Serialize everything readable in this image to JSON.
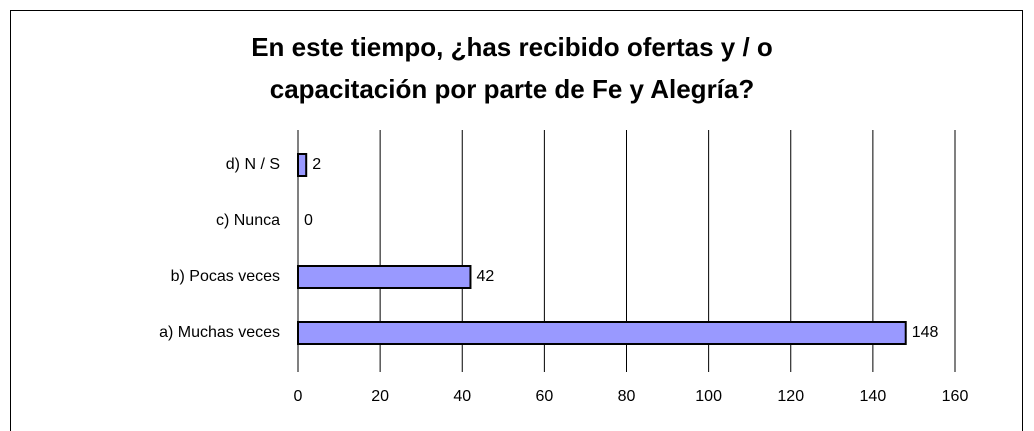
{
  "chart_data": {
    "type": "bar",
    "orientation": "horizontal",
    "title": [
      "En este tiempo, ¿has recibido ofertas y / o",
      "capacitación por parte de Fe y Alegría?"
    ],
    "categories": [
      "a) Muchas veces",
      "b) Pocas veces",
      "c) Nunca",
      "d) N / S"
    ],
    "values": [
      148,
      42,
      0,
      2
    ],
    "color": "#9999ff",
    "xlim": [
      0,
      160
    ],
    "xticks": [
      0,
      20,
      40,
      60,
      80,
      100,
      120,
      140,
      160
    ],
    "grid": true
  }
}
